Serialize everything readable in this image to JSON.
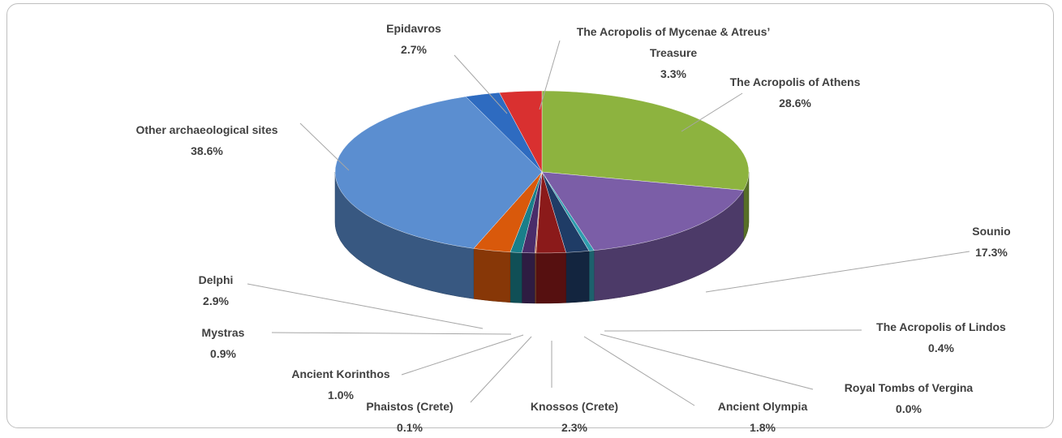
{
  "chart_data": {
    "type": "pie3d",
    "categories": [
      "The Acropolis of Athens",
      "Sounio",
      "The Acropolis of Lindos",
      "Royal Tombs of Vergina",
      "Ancient Olympia",
      "Knossos (Crete)",
      "Phaistos (Crete)",
      "Ancient Korinthos",
      "Mystras",
      "Delphi",
      "Other archaeological  sites",
      "Epidavros",
      "The Acropolis of Mycenae & Atreus’ Treasure"
    ],
    "values": [
      28.6,
      17.3,
      0.4,
      0.0,
      1.8,
      2.3,
      0.1,
      1.0,
      0.9,
      2.9,
      38.6,
      2.7,
      3.3
    ],
    "value_labels": [
      "28.6%",
      "17.3%",
      "0.4%",
      "0.0%",
      "1.8%",
      "2.3%",
      "0.1%",
      "1.0%",
      "0.9%",
      "2.9%",
      "38.6%",
      "2.7%",
      "3.3%"
    ],
    "colors": [
      "#8db33f",
      "#7b5ea7",
      "#2f9dae",
      "#c0504d",
      "#1f3c66",
      "#8b1a1a",
      "#b5673a",
      "#4a2d6a",
      "#1a7f8a",
      "#d9590b",
      "#5b8ed0",
      "#2e6bc0",
      "#d93030"
    ]
  }
}
